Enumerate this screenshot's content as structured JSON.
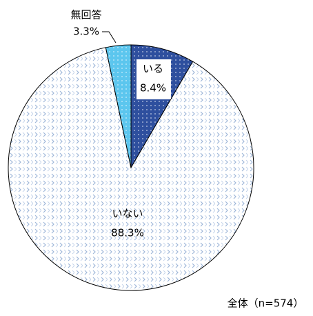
{
  "chart_data": {
    "type": "pie",
    "categories": [
      "いる",
      "いない",
      "無回答"
    ],
    "values": [
      8.4,
      88.3,
      3.3
    ],
    "value_labels": [
      "8.4%",
      "88.3%",
      "3.3%"
    ],
    "colors": [
      "#2e4f9e",
      "#ffffff",
      "#5cc6ee"
    ],
    "annotation": "全体（n=574）"
  }
}
